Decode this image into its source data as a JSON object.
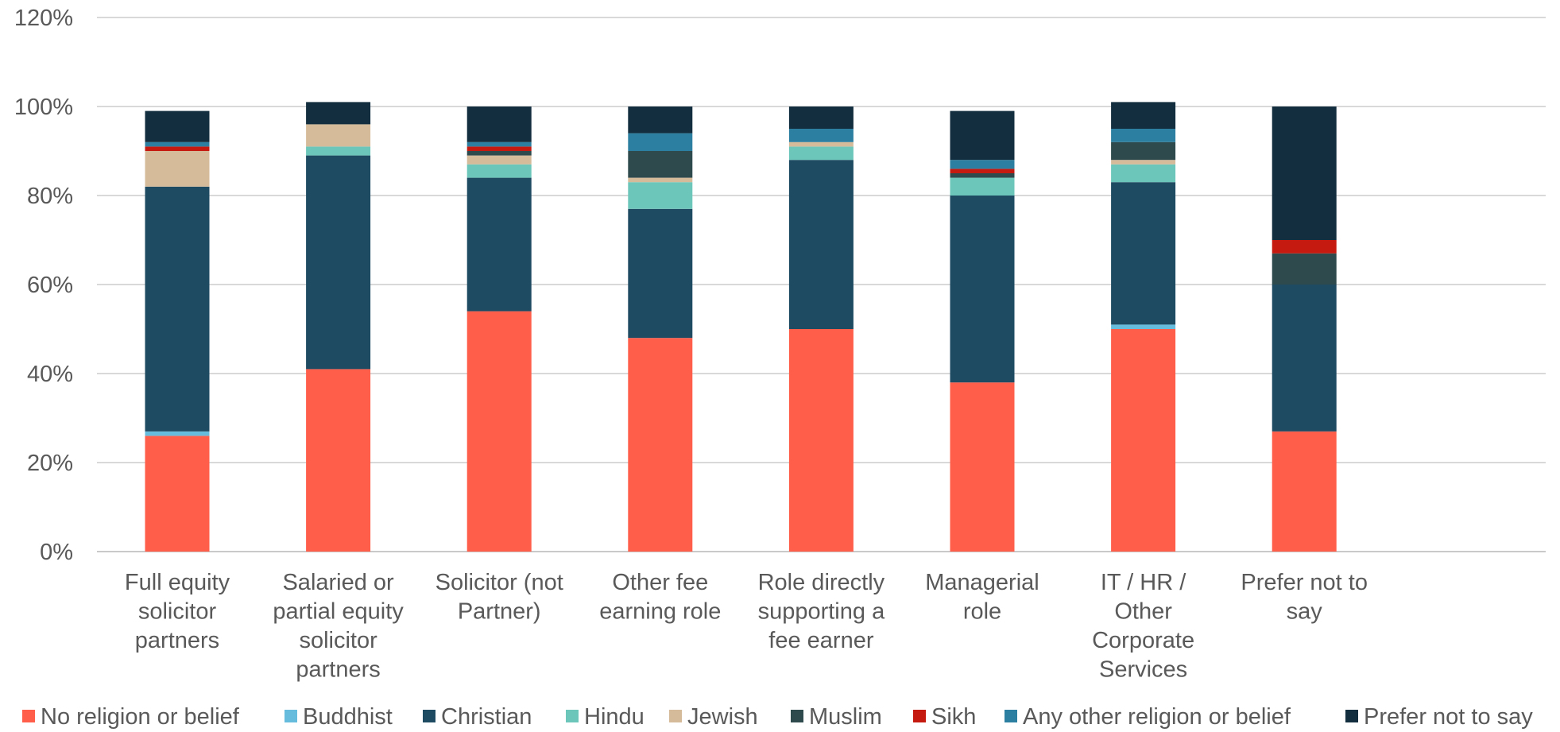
{
  "chart_data": {
    "type": "bar",
    "stacked": true,
    "title": "",
    "xlabel": "",
    "ylabel": "",
    "ylim": [
      0,
      120
    ],
    "yticks": [
      "0%",
      "20%",
      "40%",
      "60%",
      "80%",
      "100%",
      "120%"
    ],
    "grid": true,
    "legend_position": "bottom",
    "categories": [
      [
        "Full equity",
        "solicitor",
        "partners"
      ],
      [
        "Salaried or",
        "partial equity",
        "solicitor",
        "partners"
      ],
      [
        "Solicitor (not",
        "Partner)"
      ],
      [
        "Other fee",
        "earning role"
      ],
      [
        "Role directly",
        "supporting a",
        "fee earner"
      ],
      [
        "Managerial",
        "role"
      ],
      [
        "IT / HR /",
        "Other",
        "Corporate",
        "Services"
      ],
      [
        "Prefer not to",
        "say"
      ]
    ],
    "series": [
      {
        "name": "No religion or belief",
        "color": "#FF5E4A",
        "values": [
          26,
          41,
          54,
          48,
          50,
          38,
          50,
          27
        ]
      },
      {
        "name": "Buddhist",
        "color": "#66BCDD",
        "values": [
          1,
          0,
          0,
          0,
          0,
          0,
          1,
          0
        ]
      },
      {
        "name": "Christian",
        "color": "#1E4A62",
        "values": [
          55,
          48,
          30,
          29,
          38,
          42,
          32,
          33
        ]
      },
      {
        "name": "Hindu",
        "color": "#6CC6BA",
        "values": [
          0,
          2,
          3,
          6,
          3,
          4,
          4,
          0
        ]
      },
      {
        "name": "Jewish",
        "color": "#D6BB9B",
        "values": [
          8,
          5,
          2,
          1,
          1,
          0,
          1,
          0
        ]
      },
      {
        "name": "Muslim",
        "color": "#2E4A4C",
        "values": [
          0,
          0,
          1,
          6,
          0,
          1,
          4,
          7
        ]
      },
      {
        "name": "Sikh",
        "color": "#C41A10",
        "values": [
          1,
          0,
          1,
          0,
          0,
          1,
          0,
          3
        ]
      },
      {
        "name": "Any other religion or belief",
        "color": "#2C7FA0",
        "values": [
          1,
          0,
          1,
          4,
          3,
          2,
          3,
          0
        ]
      },
      {
        "name": "Prefer not to say",
        "color": "#132E3E",
        "values": [
          7,
          5,
          8,
          6,
          5,
          11,
          6,
          30
        ]
      }
    ]
  }
}
